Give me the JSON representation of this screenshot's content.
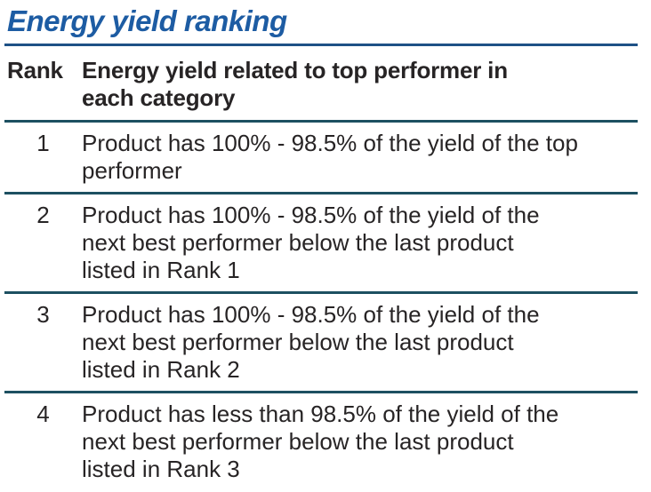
{
  "title": "Energy yield ranking",
  "colors": {
    "title_blue": "#1d5ca3",
    "title_rule_blue": "#1e5186",
    "row_rule_teal": "#1d5061",
    "body_text": "#272425",
    "background": "#ffffff"
  },
  "table": {
    "header": {
      "rank": "Rank",
      "description": "Energy yield related to top performer in\neach category"
    },
    "rows": [
      {
        "rank": "1",
        "description": "Product has 100% - 98.5% of the yield of the top\nperformer"
      },
      {
        "rank": "2",
        "description": "Product has 100% - 98.5% of the yield of the\nnext best performer below the last product\nlisted in Rank 1"
      },
      {
        "rank": "3",
        "description": "Product has 100% - 98.5% of the yield of the\nnext best performer below the last product\nlisted in Rank 2"
      },
      {
        "rank": "4",
        "description": "Product has less than 98.5% of the yield of the\nnext best performer below the last product\nlisted in Rank 3"
      }
    ]
  }
}
